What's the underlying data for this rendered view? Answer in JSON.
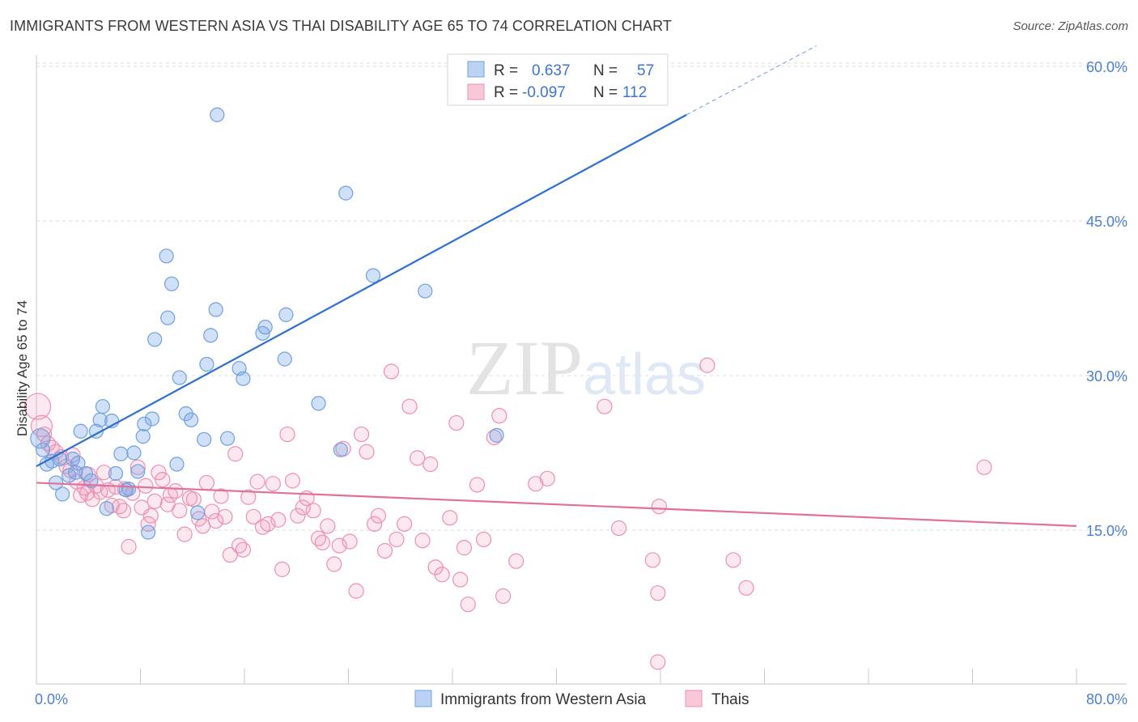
{
  "title": "IMMIGRANTS FROM WESTERN ASIA VS THAI DISABILITY AGE 65 TO 74 CORRELATION CHART",
  "source": "Source: ZipAtlas.com",
  "watermark": {
    "zip": "ZIP",
    "atlas": "atlas"
  },
  "colors": {
    "blue": "#6fa0e0",
    "blue_line": "#2d6fd0",
    "pink": "#ee8fb0",
    "pink_line": "#e2709a",
    "axis_text": "#4a7fd4"
  },
  "stats": {
    "r_label": "R =",
    "n_label": "N =",
    "rows": [
      {
        "series": "Immigrants from Western Asia",
        "r": "0.637",
        "n": "57"
      },
      {
        "series": "Thais",
        "r": "-0.097",
        "n": "112"
      }
    ]
  },
  "chart_data": {
    "type": "scatter",
    "title": "IMMIGRANTS FROM WESTERN ASIA VS THAI DISABILITY AGE 65 TO 74 CORRELATION CHART",
    "xlabel": "",
    "ylabel": "Disability Age 65 to 74",
    "xlim": [
      0,
      80
    ],
    "ylim": [
      0,
      62
    ],
    "x_tick_labels": [
      "0.0%",
      "80.0%"
    ],
    "y_ticks": [
      15,
      30,
      45,
      60
    ],
    "y_tick_labels": [
      "15.0%",
      "30.0%",
      "45.0%",
      "60.0%"
    ],
    "grid": "horizontal dashed",
    "legend_position": "bottom-center",
    "series": [
      {
        "name": "Immigrants from Western Asia",
        "color": "#6fa0e0",
        "trend": {
          "x0": 0,
          "y0": 21.2,
          "x1": 50,
          "y1": 55.3,
          "dashed_to_x": 60,
          "dashed_to_y": 62
        },
        "points": [
          [
            0.3,
            23.9
          ],
          [
            0.5,
            22.8
          ],
          [
            0.8,
            21.4
          ],
          [
            1.2,
            21.7
          ],
          [
            1.5,
            19.6
          ],
          [
            2.0,
            18.5
          ],
          [
            2.5,
            20.3
          ],
          [
            2.8,
            21.9
          ],
          [
            3.2,
            21.5
          ],
          [
            3.4,
            24.6
          ],
          [
            3.8,
            20.5
          ],
          [
            4.2,
            19.8
          ],
          [
            4.6,
            24.6
          ],
          [
            4.9,
            25.7
          ],
          [
            5.1,
            27.0
          ],
          [
            5.4,
            17.1
          ],
          [
            5.8,
            25.6
          ],
          [
            6.1,
            20.5
          ],
          [
            6.5,
            22.4
          ],
          [
            6.9,
            18.9
          ],
          [
            7.1,
            19.0
          ],
          [
            7.5,
            22.5
          ],
          [
            7.8,
            20.7
          ],
          [
            8.2,
            24.1
          ],
          [
            8.3,
            25.3
          ],
          [
            8.6,
            14.8
          ],
          [
            8.9,
            25.8
          ],
          [
            9.1,
            33.5
          ],
          [
            10.0,
            41.6
          ],
          [
            10.1,
            35.6
          ],
          [
            10.4,
            38.9
          ],
          [
            10.8,
            21.4
          ],
          [
            11.0,
            29.8
          ],
          [
            11.5,
            26.3
          ],
          [
            11.9,
            25.7
          ],
          [
            12.4,
            16.7
          ],
          [
            12.9,
            23.8
          ],
          [
            13.1,
            31.1
          ],
          [
            13.4,
            33.9
          ],
          [
            13.8,
            36.4
          ],
          [
            13.9,
            55.3
          ],
          [
            14.7,
            23.9
          ],
          [
            15.6,
            30.7
          ],
          [
            15.9,
            29.7
          ],
          [
            17.4,
            34.1
          ],
          [
            17.6,
            34.7
          ],
          [
            19.1,
            31.6
          ],
          [
            19.2,
            35.9
          ],
          [
            21.7,
            27.3
          ],
          [
            23.4,
            22.8
          ],
          [
            23.8,
            47.7
          ],
          [
            25.9,
            39.7
          ],
          [
            29.9,
            38.2
          ],
          [
            35.4,
            24.2
          ],
          [
            42.5,
            60.1
          ],
          [
            1.8,
            21.9
          ],
          [
            3.0,
            20.6
          ]
        ]
      },
      {
        "name": "Thais",
        "color": "#ee8fb0",
        "trend": {
          "x0": 0,
          "y0": 19.6,
          "x1": 80,
          "y1": 15.4
        },
        "points": [
          [
            0.1,
            27.0
          ],
          [
            0.4,
            25.1
          ],
          [
            0.6,
            24.3
          ],
          [
            0.9,
            23.4
          ],
          [
            1.2,
            23.0
          ],
          [
            1.5,
            22.6
          ],
          [
            1.9,
            22.1
          ],
          [
            2.3,
            21.2
          ],
          [
            2.6,
            20.8
          ],
          [
            2.8,
            22.3
          ],
          [
            3.1,
            19.7
          ],
          [
            3.4,
            18.4
          ],
          [
            3.7,
            19.1
          ],
          [
            4.0,
            20.4
          ],
          [
            4.3,
            18.0
          ],
          [
            4.6,
            19.3
          ],
          [
            4.9,
            18.7
          ],
          [
            5.2,
            20.6
          ],
          [
            5.5,
            18.9
          ],
          [
            5.8,
            17.4
          ],
          [
            6.1,
            19.2
          ],
          [
            6.4,
            17.3
          ],
          [
            6.8,
            19.0
          ],
          [
            7.1,
            13.4
          ],
          [
            7.4,
            18.6
          ],
          [
            7.8,
            21.1
          ],
          [
            8.1,
            17.2
          ],
          [
            8.4,
            19.3
          ],
          [
            8.8,
            16.4
          ],
          [
            9.1,
            17.8
          ],
          [
            9.4,
            20.6
          ],
          [
            9.7,
            19.9
          ],
          [
            10.1,
            17.5
          ],
          [
            10.3,
            18.4
          ],
          [
            10.7,
            18.8
          ],
          [
            11.0,
            16.9
          ],
          [
            11.4,
            14.6
          ],
          [
            11.8,
            18.1
          ],
          [
            12.1,
            18.0
          ],
          [
            12.5,
            16.1
          ],
          [
            12.8,
            15.4
          ],
          [
            13.1,
            19.6
          ],
          [
            13.5,
            16.8
          ],
          [
            13.8,
            15.9
          ],
          [
            14.2,
            18.3
          ],
          [
            14.5,
            16.3
          ],
          [
            14.9,
            12.6
          ],
          [
            15.3,
            22.4
          ],
          [
            15.6,
            13.5
          ],
          [
            15.9,
            13.1
          ],
          [
            16.3,
            18.2
          ],
          [
            16.7,
            16.3
          ],
          [
            17.0,
            19.7
          ],
          [
            17.4,
            15.3
          ],
          [
            17.8,
            15.6
          ],
          [
            18.2,
            19.5
          ],
          [
            18.6,
            16.0
          ],
          [
            18.9,
            11.2
          ],
          [
            19.3,
            24.3
          ],
          [
            19.7,
            19.8
          ],
          [
            20.1,
            16.4
          ],
          [
            20.5,
            17.2
          ],
          [
            20.8,
            18.1
          ],
          [
            21.3,
            16.9
          ],
          [
            21.7,
            14.2
          ],
          [
            22.0,
            13.8
          ],
          [
            22.4,
            15.4
          ],
          [
            22.9,
            11.7
          ],
          [
            23.3,
            13.5
          ],
          [
            23.6,
            22.9
          ],
          [
            24.1,
            13.9
          ],
          [
            24.6,
            9.1
          ],
          [
            25.0,
            24.3
          ],
          [
            25.4,
            22.6
          ],
          [
            26.0,
            15.6
          ],
          [
            26.3,
            16.4
          ],
          [
            26.8,
            13.0
          ],
          [
            27.3,
            30.4
          ],
          [
            27.7,
            14.1
          ],
          [
            28.3,
            15.6
          ],
          [
            28.7,
            27.0
          ],
          [
            29.3,
            22.0
          ],
          [
            29.7,
            14.0
          ],
          [
            30.3,
            21.4
          ],
          [
            30.7,
            11.4
          ],
          [
            31.2,
            10.7
          ],
          [
            31.8,
            16.2
          ],
          [
            32.3,
            25.4
          ],
          [
            32.6,
            10.2
          ],
          [
            32.9,
            13.3
          ],
          [
            33.2,
            7.8
          ],
          [
            33.9,
            19.4
          ],
          [
            34.4,
            14.1
          ],
          [
            35.2,
            24.0
          ],
          [
            35.6,
            26.1
          ],
          [
            35.9,
            8.6
          ],
          [
            36.9,
            12.0
          ],
          [
            38.4,
            19.5
          ],
          [
            39.3,
            20.0
          ],
          [
            43.7,
            27.0
          ],
          [
            44.8,
            15.2
          ],
          [
            47.4,
            12.1
          ],
          [
            47.8,
            8.9
          ],
          [
            47.9,
            17.3
          ],
          [
            51.6,
            31.0
          ],
          [
            53.6,
            12.1
          ],
          [
            54.6,
            9.4
          ],
          [
            72.9,
            21.1
          ],
          [
            47.8,
            2.2
          ],
          [
            3.9,
            18.6
          ],
          [
            6.7,
            16.9
          ],
          [
            8.6,
            15.6
          ]
        ]
      }
    ]
  }
}
